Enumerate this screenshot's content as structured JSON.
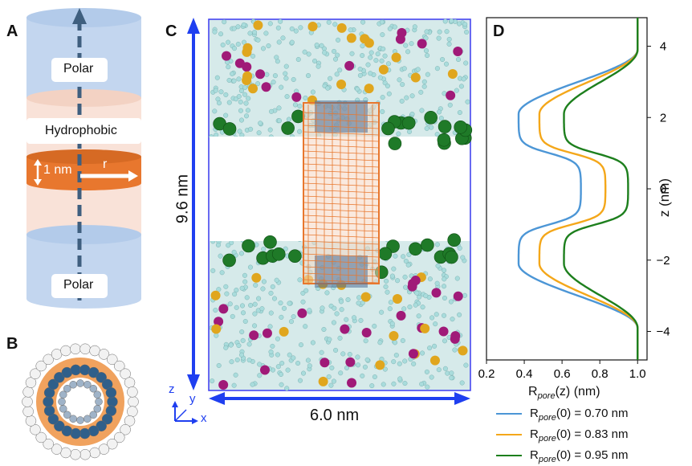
{
  "panels": {
    "a": {
      "letter": "A",
      "top_label": "Polar",
      "middle_label": "Hydrophobic",
      "thickness_label": "1 nm",
      "radius_label": "r",
      "bottom_label": "Polar"
    },
    "b": {
      "letter": "B"
    },
    "c": {
      "letter": "C",
      "height_label": "9.6 nm",
      "width_label": "6.0 nm",
      "axes": {
        "z": "z",
        "y": "y",
        "x": "x"
      }
    },
    "d": {
      "letter": "D"
    }
  },
  "colors": {
    "polar_blue": "#c3d6ef",
    "hydrophobic_pink": "#f9e2d8",
    "pore_orange": "#e8772e",
    "arrow_blue": "#1f3ff0",
    "series_blue": "#4c96d6",
    "series_orange": "#f4a71a",
    "series_green": "#1d7f1d"
  },
  "chart_data": {
    "type": "line",
    "xlabel": "R",
    "xlabel_sub": "pore",
    "xlabel_rest": "(z) (nm)",
    "ylabel": "z (nm)",
    "xlim": [
      0.2,
      1.05
    ],
    "ylim": [
      -4.8,
      4.8
    ],
    "xticks": [
      "0.2",
      "0.4",
      "0.6",
      "0.8",
      "1.0"
    ],
    "xtick_values": [
      0.2,
      0.4,
      0.6,
      0.8,
      1.0
    ],
    "yticks": [
      "4",
      "2",
      "0",
      "−2",
      "−4"
    ],
    "ytick_values": [
      4,
      2,
      0,
      -2,
      -4
    ],
    "grid": false,
    "legend_position": "below",
    "series": [
      {
        "legend_prefix": "R",
        "legend_sub": "pore",
        "legend_rest": "(0) = 0.70 nm",
        "r_center": 0.7,
        "r_min": 0.37,
        "min_z": 2.1,
        "color": "#4c96d6"
      },
      {
        "legend_prefix": "R",
        "legend_sub": "pore",
        "legend_rest": "(0) = 0.83 nm",
        "r_center": 0.83,
        "r_min": 0.48,
        "min_z": 2.1,
        "color": "#f4a71a"
      },
      {
        "legend_prefix": "R",
        "legend_sub": "pore",
        "legend_rest": "(0) = 0.95 nm",
        "r_center": 0.95,
        "r_min": 0.61,
        "min_z": 2.1,
        "color": "#1d7f1d"
      }
    ]
  }
}
